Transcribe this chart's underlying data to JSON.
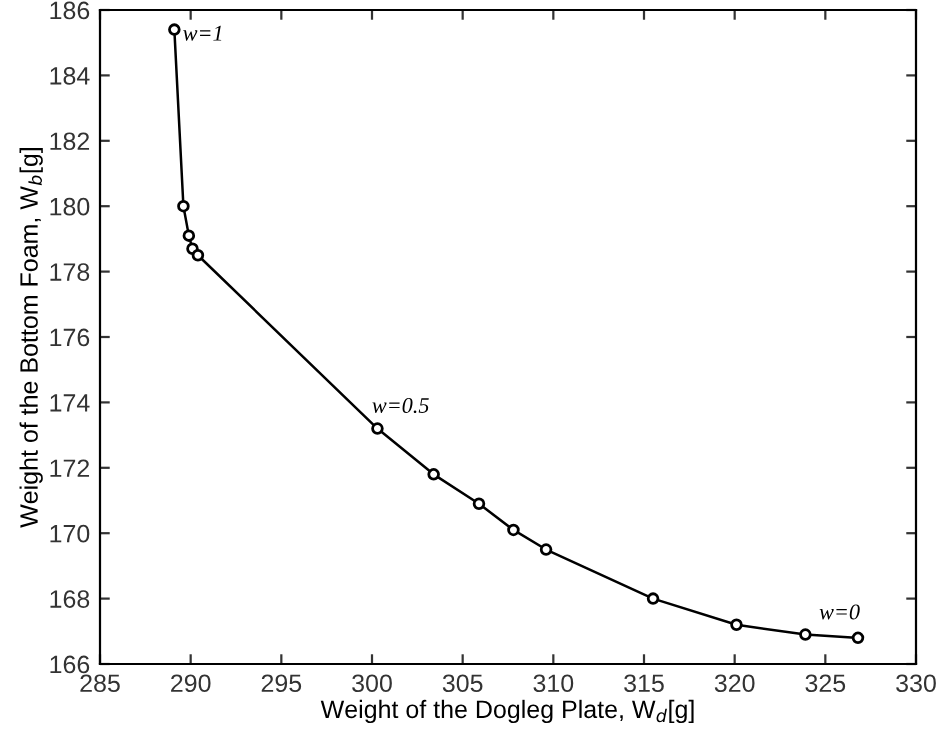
{
  "chart_data": {
    "type": "line",
    "xlabel": "Weight of the Dogleg Plate, W$_{d}$[g]",
    "ylabel": "Weight of the Bottom Foam, W$_{b}$[g]",
    "x": [
      289.1,
      289.6,
      289.9,
      290.1,
      290.4,
      300.3,
      303.4,
      305.9,
      307.8,
      309.6,
      315.5,
      320.1,
      323.9,
      326.8
    ],
    "series": [
      {
        "color": "#000000",
        "values": [
          185.4,
          180.0,
          179.1,
          178.7,
          178.5,
          173.2,
          171.8,
          170.9,
          170.1,
          169.5,
          168.0,
          167.2,
          166.9,
          166.8
        ]
      }
    ],
    "xlim": [
      285,
      330
    ],
    "xticks": [
      285,
      290,
      295,
      300,
      305,
      310,
      315,
      320,
      325,
      330
    ],
    "ylim": [
      166,
      186
    ],
    "yticks": [
      166,
      168,
      170,
      172,
      174,
      176,
      178,
      180,
      182,
      184,
      186
    ],
    "annotations": [
      {
        "text": "w=1",
        "x": 289.1,
        "y": 185.4
      },
      {
        "text": "w=0.5",
        "x": 300.3,
        "y": 173.2
      },
      {
        "text": "w=0",
        "x": 326.8,
        "y": 166.8
      }
    ],
    "marker": "circle",
    "line_style": "solid",
    "grid": false,
    "legend": false
  }
}
